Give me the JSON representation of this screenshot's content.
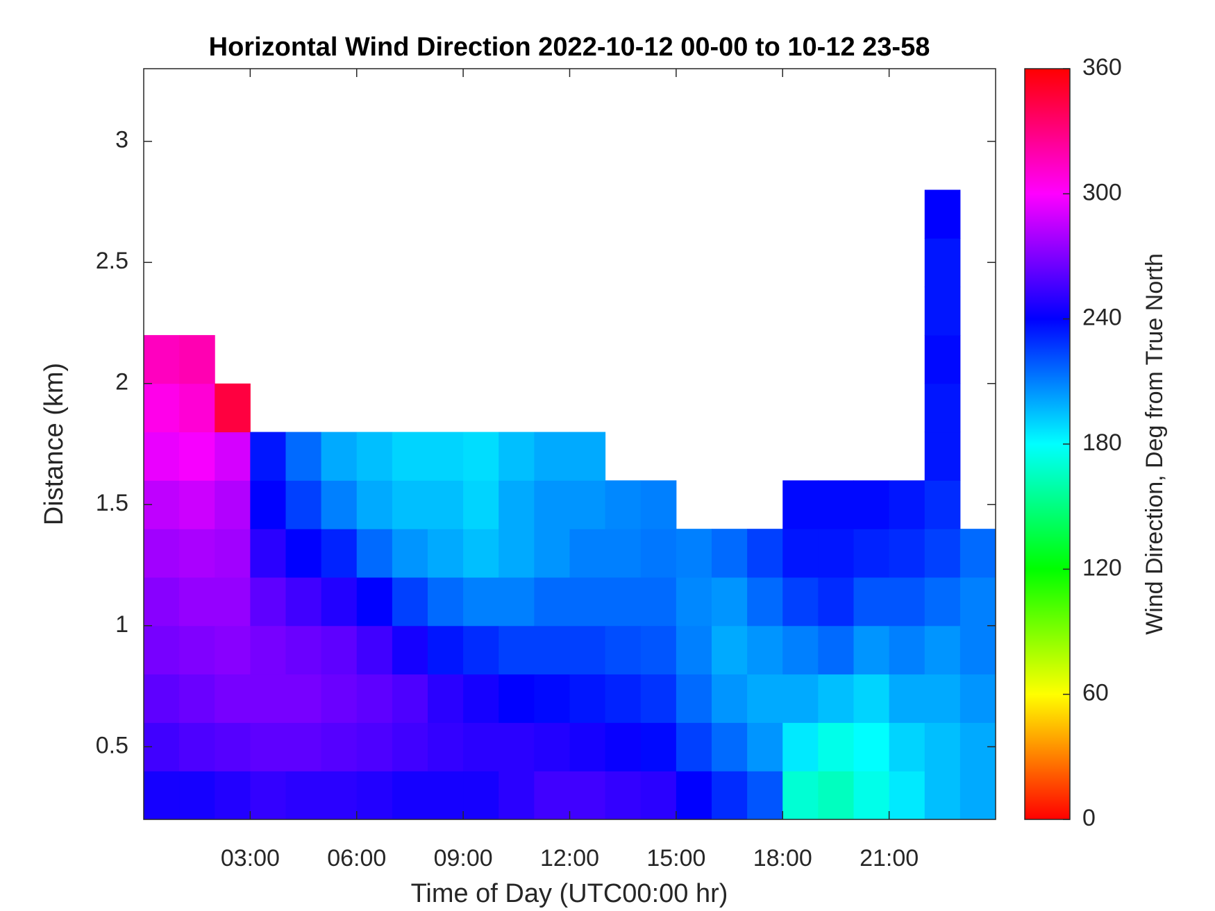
{
  "chart_data": {
    "type": "heatmap",
    "title": "Horizontal Wind Direction 2022-10-12 00-00 to 10-12 23-58",
    "xlabel": "Time of Day (UTC00:00 hr)",
    "ylabel": "Distance (km)",
    "colorbar_label": "Wind Direction, Deg from True North",
    "colormap": "hsv",
    "xlim": [
      0,
      24
    ],
    "ylim": [
      0.2,
      3.3
    ],
    "clim": [
      0,
      360
    ],
    "xticks": [
      {
        "value": 3,
        "label": "03:00"
      },
      {
        "value": 6,
        "label": "06:00"
      },
      {
        "value": 9,
        "label": "09:00"
      },
      {
        "value": 12,
        "label": "12:00"
      },
      {
        "value": 15,
        "label": "15:00"
      },
      {
        "value": 18,
        "label": "18:00"
      },
      {
        "value": 21,
        "label": "21:00"
      }
    ],
    "yticks": [
      0.5,
      1,
      1.5,
      2,
      2.5,
      3
    ],
    "cticks": [
      0,
      60,
      120,
      180,
      240,
      300,
      360
    ],
    "x_bins": [
      0,
      1,
      2,
      3,
      4,
      5,
      6,
      7,
      8,
      9,
      10,
      11,
      12,
      13,
      14,
      15,
      16,
      17,
      18,
      19,
      20,
      21,
      22,
      23,
      24
    ],
    "y_bins": [
      0.2,
      0.4,
      0.6,
      0.8,
      1.0,
      1.2,
      1.4,
      1.6,
      1.8,
      2.0,
      2.2,
      2.4,
      2.6,
      2.8,
      3.0,
      3.2
    ],
    "values": [
      [
        245,
        255,
        262,
        268,
        272,
        278,
        285,
        295,
        305,
        315,
        null,
        null,
        null,
        null,
        null
      ],
      [
        245,
        258,
        265,
        270,
        275,
        280,
        288,
        298,
        310,
        318,
        null,
        null,
        null,
        null,
        null
      ],
      [
        248,
        260,
        268,
        272,
        275,
        278,
        282,
        290,
        345,
        null,
        null,
        null,
        null,
        null,
        null
      ],
      [
        252,
        262,
        268,
        268,
        262,
        250,
        240,
        235,
        null,
        null,
        null,
        null,
        null,
        null,
        null
      ],
      [
        250,
        262,
        268,
        265,
        255,
        240,
        225,
        215,
        null,
        null,
        null,
        null,
        null,
        null,
        null
      ],
      [
        250,
        260,
        265,
        262,
        248,
        232,
        210,
        200,
        null,
        null,
        null,
        null,
        null,
        null,
        null
      ],
      [
        248,
        258,
        262,
        255,
        240,
        215,
        200,
        195,
        null,
        null,
        null,
        null,
        null,
        null,
        null
      ],
      [
        245,
        255,
        258,
        245,
        225,
        205,
        195,
        190,
        null,
        null,
        null,
        null,
        null,
        null,
        null
      ],
      [
        245,
        252,
        250,
        235,
        215,
        200,
        195,
        190,
        null,
        null,
        null,
        null,
        null,
        null,
        null
      ],
      [
        245,
        250,
        245,
        230,
        210,
        195,
        190,
        188,
        null,
        null,
        null,
        null,
        null,
        null,
        null
      ],
      [
        250,
        250,
        240,
        225,
        210,
        200,
        200,
        195,
        null,
        null,
        null,
        null,
        null,
        null,
        null
      ],
      [
        255,
        248,
        238,
        225,
        215,
        205,
        205,
        200,
        null,
        null,
        null,
        null,
        null,
        null,
        null
      ],
      [
        255,
        245,
        235,
        225,
        215,
        210,
        205,
        200,
        null,
        null,
        null,
        null,
        null,
        null,
        null
      ],
      [
        252,
        242,
        232,
        222,
        215,
        210,
        208,
        null,
        null,
        null,
        null,
        null,
        null,
        null,
        null
      ],
      [
        250,
        238,
        228,
        220,
        215,
        212,
        210,
        null,
        null,
        null,
        null,
        null,
        null,
        null,
        null
      ],
      [
        240,
        225,
        215,
        210,
        208,
        210,
        null,
        null,
        null,
        null,
        null,
        null,
        null,
        null,
        null
      ],
      [
        230,
        215,
        205,
        200,
        205,
        215,
        null,
        null,
        null,
        null,
        null,
        null,
        null,
        null,
        null
      ],
      [
        220,
        205,
        200,
        205,
        215,
        225,
        null,
        null,
        null,
        null,
        null,
        null,
        null,
        null,
        null
      ],
      [
        170,
        185,
        200,
        210,
        225,
        235,
        238,
        null,
        null,
        null,
        null,
        null,
        null,
        null,
        null
      ],
      [
        165,
        175,
        195,
        215,
        230,
        235,
        238,
        null,
        null,
        null,
        null,
        null,
        null,
        null,
        null
      ],
      [
        175,
        180,
        190,
        205,
        220,
        232,
        238,
        null,
        null,
        null,
        null,
        null,
        null,
        null,
        null
      ],
      [
        185,
        190,
        200,
        210,
        220,
        230,
        235,
        null,
        null,
        null,
        null,
        null,
        null,
        null,
        null
      ],
      [
        195,
        195,
        200,
        205,
        215,
        225,
        230,
        235,
        235,
        238,
        235,
        235,
        240,
        null,
        null
      ],
      [
        200,
        200,
        205,
        210,
        210,
        215,
        null,
        null,
        null,
        null,
        null,
        null,
        null,
        null,
        null
      ]
    ]
  }
}
